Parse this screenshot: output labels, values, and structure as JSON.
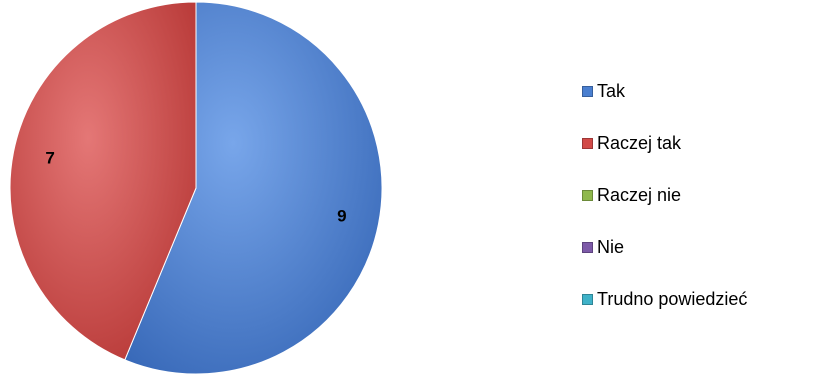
{
  "chart_data": {
    "type": "pie",
    "categories": [
      "Tak",
      "Raczej tak",
      "Raczej nie",
      "Nie",
      "Trudno powiedzieć"
    ],
    "values": [
      9,
      7,
      0,
      0,
      0
    ],
    "data_labels": [
      "9",
      "7",
      "",
      "",
      ""
    ],
    "colors": [
      "#4a7fd0",
      "#d24a48",
      "#8fb84c",
      "#7d5aa8",
      "#3fb2c8"
    ],
    "start_angle_deg": 0,
    "direction": "clockwise",
    "legend_position": "right"
  }
}
